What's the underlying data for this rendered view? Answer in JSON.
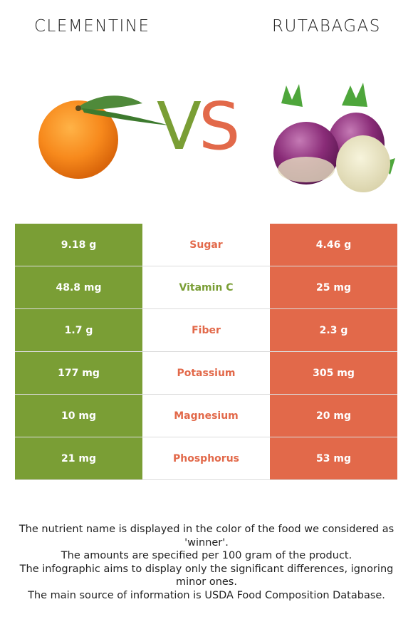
{
  "header": {
    "left_food": "CLEMENTINE",
    "right_food": "RUTABAGAS",
    "vs_v": "V",
    "vs_s": "S"
  },
  "colors": {
    "left_winner": "#7a9e35",
    "right_winner": "#e2694a"
  },
  "images": {
    "left": "clementine-image",
    "right": "rutabagas-image"
  },
  "rows": [
    {
      "left": "9.18 g",
      "nutrient": "Sugar",
      "right": "4.46 g",
      "winner": "right"
    },
    {
      "left": "48.8 mg",
      "nutrient": "Vitamin C",
      "right": "25 mg",
      "winner": "left"
    },
    {
      "left": "1.7 g",
      "nutrient": "Fiber",
      "right": "2.3 g",
      "winner": "right"
    },
    {
      "left": "177 mg",
      "nutrient": "Potassium",
      "right": "305 mg",
      "winner": "right"
    },
    {
      "left": "10 mg",
      "nutrient": "Magnesium",
      "right": "20 mg",
      "winner": "right"
    },
    {
      "left": "21 mg",
      "nutrient": "Phosphorus",
      "right": "53 mg",
      "winner": "right"
    }
  ],
  "notes": [
    "The nutrient name is displayed in the color of the food we considered as 'winner'.",
    "The amounts are specified per 100 gram of the product.",
    "The infographic aims to display only the significant differences, ignoring minor ones.",
    "The main source of information is USDA Food Composition Database."
  ]
}
